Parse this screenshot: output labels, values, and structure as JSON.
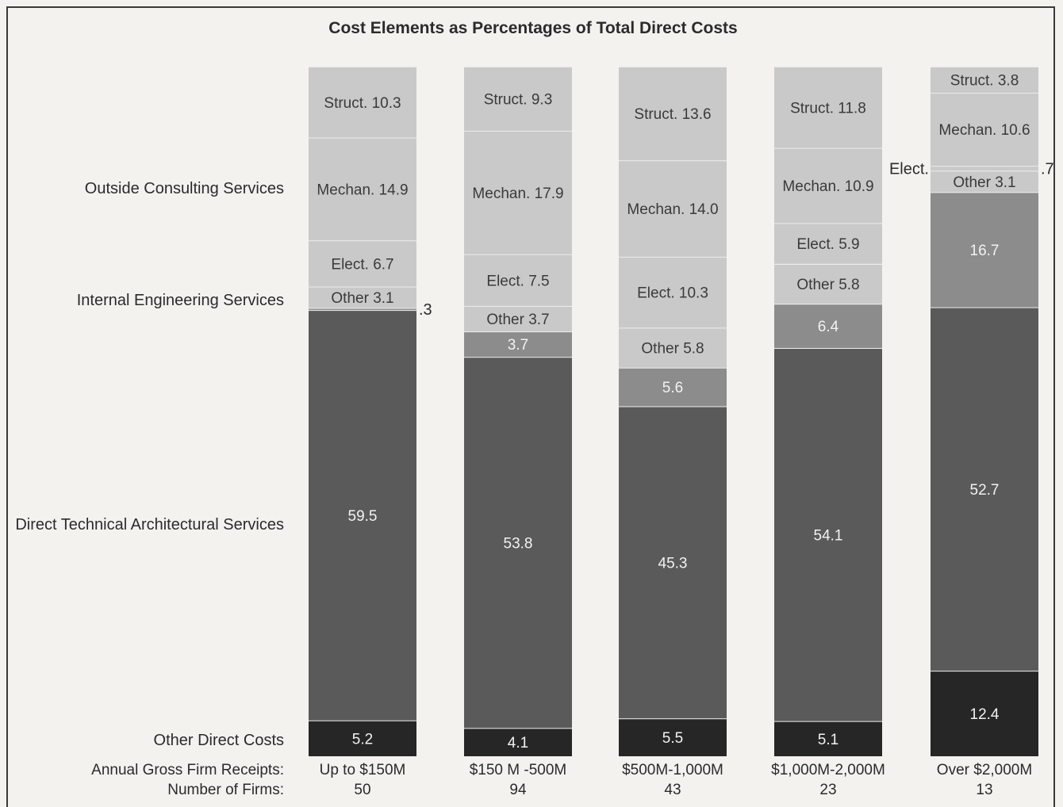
{
  "chart_data": {
    "type": "bar",
    "stacked": true,
    "title": "Cost Elements as Percentages of Total Direct Costs",
    "row_labels": {
      "outside": "Outside Consulting Services",
      "internal": "Internal Engineering Services",
      "direct": "Direct Technical Architectural Services",
      "other_direct": "Other Direct Costs"
    },
    "footer": {
      "receipts_label": "Annual Gross Firm Receipts:",
      "firms_label": "Number of Firms:"
    },
    "colors": {
      "outside": "#c9c9c9",
      "internal": "#8c8c8c",
      "direct": "#5a5a5a",
      "other_direct": "#262626",
      "divider": "#eeeeee"
    },
    "categories": [
      {
        "receipts": "Up to $150M",
        "firms": "50",
        "segments": [
          {
            "group": "other_direct",
            "value": 5.2,
            "label": "5.2"
          },
          {
            "group": "direct",
            "value": 59.5,
            "label": "59.5"
          },
          {
            "group": "internal",
            "value": 0.3,
            "label": "",
            "outside_label": ".3",
            "outside_side": "right"
          },
          {
            "group": "outside",
            "value": 3.1,
            "label": "Other 3.1"
          },
          {
            "group": "outside",
            "value": 6.7,
            "label": "Elect. 6.7"
          },
          {
            "group": "outside",
            "value": 14.9,
            "label": "Mechan. 14.9"
          },
          {
            "group": "outside",
            "value": 10.3,
            "label": "Struct. 10.3"
          }
        ]
      },
      {
        "receipts": "$150 M -500M",
        "firms": "94",
        "segments": [
          {
            "group": "other_direct",
            "value": 4.1,
            "label": "4.1"
          },
          {
            "group": "direct",
            "value": 53.8,
            "label": "53.8"
          },
          {
            "group": "internal",
            "value": 3.7,
            "label": "3.7"
          },
          {
            "group": "outside",
            "value": 3.7,
            "label": "Other 3.7"
          },
          {
            "group": "outside",
            "value": 7.5,
            "label": "Elect. 7.5"
          },
          {
            "group": "outside",
            "value": 17.9,
            "label": "Mechan. 17.9"
          },
          {
            "group": "outside",
            "value": 9.3,
            "label": "Struct. 9.3"
          }
        ]
      },
      {
        "receipts": "$500M-1,000M",
        "firms": "43",
        "segments": [
          {
            "group": "other_direct",
            "value": 5.5,
            "label": "5.5"
          },
          {
            "group": "direct",
            "value": 45.3,
            "label": "45.3"
          },
          {
            "group": "internal",
            "value": 5.6,
            "label": "5.6"
          },
          {
            "group": "outside",
            "value": 5.8,
            "label": "Other 5.8"
          },
          {
            "group": "outside",
            "value": 10.3,
            "label": "Elect. 10.3"
          },
          {
            "group": "outside",
            "value": 14.0,
            "label": "Mechan. 14.0"
          },
          {
            "group": "outside",
            "value": 13.6,
            "label": "Struct. 13.6"
          }
        ]
      },
      {
        "receipts": "$1,000M-2,000M",
        "firms": "23",
        "segments": [
          {
            "group": "other_direct",
            "value": 5.1,
            "label": "5.1"
          },
          {
            "group": "direct",
            "value": 54.1,
            "label": "54.1"
          },
          {
            "group": "internal",
            "value": 6.4,
            "label": "6.4"
          },
          {
            "group": "outside",
            "value": 5.8,
            "label": "Other 5.8"
          },
          {
            "group": "outside",
            "value": 5.9,
            "label": "Elect. 5.9"
          },
          {
            "group": "outside",
            "value": 10.9,
            "label": "Mechan. 10.9"
          },
          {
            "group": "outside",
            "value": 11.8,
            "label": "Struct. 11.8"
          }
        ]
      },
      {
        "receipts": "Over $2,000M",
        "firms": "13",
        "segments": [
          {
            "group": "other_direct",
            "value": 12.4,
            "label": "12.4"
          },
          {
            "group": "direct",
            "value": 52.7,
            "label": "52.7"
          },
          {
            "group": "internal",
            "value": 16.7,
            "label": "16.7"
          },
          {
            "group": "outside",
            "value": 3.1,
            "label": "Other 3.1"
          },
          {
            "group": "outside",
            "value": 0.7,
            "label": "",
            "outside_label": ".7",
            "outside_side": "right",
            "left_label": "Elect."
          },
          {
            "group": "outside",
            "value": 10.6,
            "label": "Mechan. 10.6"
          },
          {
            "group": "outside",
            "value": 3.8,
            "label": "Struct. 3.8"
          }
        ]
      }
    ]
  }
}
